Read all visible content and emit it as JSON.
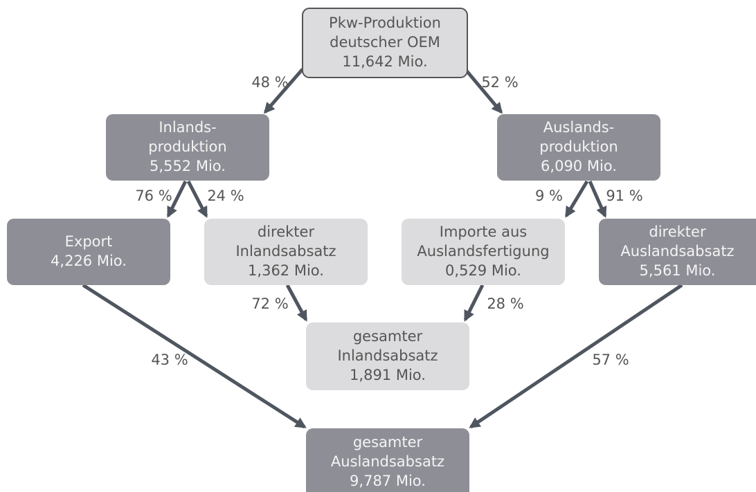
{
  "nodes": [
    {
      "lines": [
        "Pkw-Produktion",
        "deutscher OEM",
        "11,642 Mio."
      ]
    },
    {
      "lines": [
        "Inlands-",
        "produktion",
        "5,552 Mio."
      ]
    },
    {
      "lines": [
        "Auslands-",
        "produktion",
        "6,090 Mio."
      ]
    },
    {
      "lines": [
        "Export",
        "4,226 Mio."
      ]
    },
    {
      "lines": [
        "direkter",
        "Inlandsabsatz",
        "1,362 Mio."
      ]
    },
    {
      "lines": [
        "Importe aus",
        "Auslandsfertigung",
        "0,529 Mio."
      ]
    },
    {
      "lines": [
        "direkter",
        "Auslandsabsatz",
        "5,561 Mio."
      ]
    },
    {
      "lines": [
        "gesamter",
        "Inlandsabsatz",
        "1,891 Mio."
      ]
    },
    {
      "lines": [
        "gesamter",
        "Auslandsabsatz",
        "9,787 Mio."
      ]
    }
  ],
  "edges": [
    {
      "label": "48 %"
    },
    {
      "label": "52 %"
    },
    {
      "label": "76 %"
    },
    {
      "label": "24 %"
    },
    {
      "label": "9 %"
    },
    {
      "label": "91 %"
    },
    {
      "label": "72 %"
    },
    {
      "label": "28 %"
    },
    {
      "label": "43 %"
    },
    {
      "label": "57 %"
    }
  ]
}
